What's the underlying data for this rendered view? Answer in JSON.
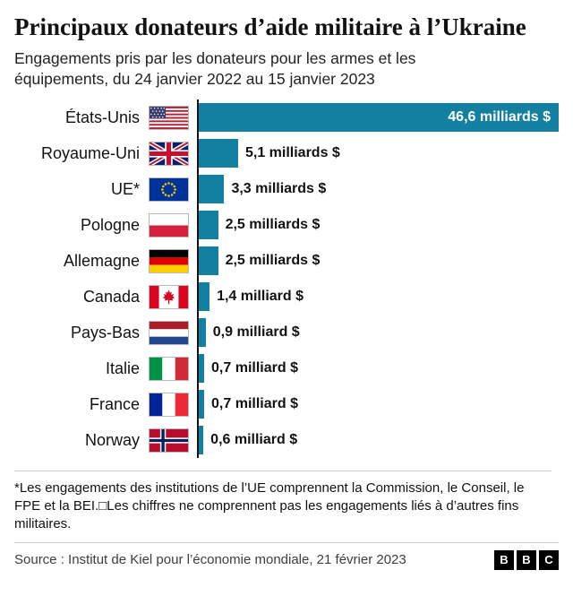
{
  "chart_data": {
    "type": "bar",
    "orientation": "horizontal",
    "title": "Principaux donateurs d’aide militaire à l’Ukraine",
    "subtitle": "Engagements pris par les donateurs pour les armes et les équipements, du 24 janvier 2022 au 15 janvier 2023",
    "unit": "milliards $",
    "xlim": [
      0,
      46.6
    ],
    "bar_color": "#1380A1",
    "grid": false,
    "legend": false,
    "rows": [
      {
        "country": "États-Unis",
        "flag": "us-flag-icon",
        "value": 46.6,
        "value_label": "46,6 milliards $",
        "label_inside": true
      },
      {
        "country": "Royaume-Uni",
        "flag": "uk-flag-icon",
        "value": 5.1,
        "value_label": "5,1 milliards $"
      },
      {
        "country": "UE*",
        "flag": "eu-flag-icon",
        "value": 3.3,
        "value_label": "3,3 milliards $"
      },
      {
        "country": "Pologne",
        "flag": "poland-flag-icon",
        "value": 2.5,
        "value_label": "2,5 milliards $"
      },
      {
        "country": "Allemagne",
        "flag": "germany-flag-icon",
        "value": 2.5,
        "value_label": "2,5 milliards $"
      },
      {
        "country": "Canada",
        "flag": "canada-flag-icon",
        "value": 1.4,
        "value_label": "1,4 milliard $"
      },
      {
        "country": "Pays-Bas",
        "flag": "netherlands-flag-icon",
        "value": 0.9,
        "value_label": "0,9 milliard $"
      },
      {
        "country": "Italie",
        "flag": "italy-flag-icon",
        "value": 0.7,
        "value_label": "0,7 milliard $"
      },
      {
        "country": "France",
        "flag": "france-flag-icon",
        "value": 0.7,
        "value_label": "0,7 milliard $"
      },
      {
        "country": "Norway",
        "flag": "norway-flag-icon",
        "value": 0.6,
        "value_label": "0,6 milliard $"
      }
    ]
  },
  "footnote": "*Les engagements des institutions de l’UE comprennent la Commission, le Conseil, le FPE et la BEI.□Les chiffres ne comprennent pas les engagements liés à d’autres fins militaires.",
  "footer": {
    "source": "Source : Institut de Kiel pour l’économie mondiale, 21 février 2023",
    "logo_letters": {
      "0": "B",
      "1": "B",
      "2": "C"
    }
  }
}
